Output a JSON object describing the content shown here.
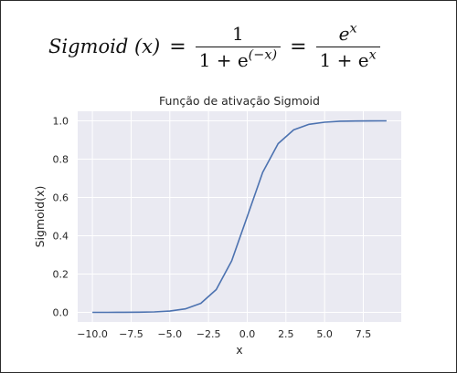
{
  "formula": {
    "lhs_name": "Sigmoid",
    "lhs_arg": "(x)",
    "equals": "=",
    "frac1_num": "1",
    "frac1_den_base": "1 + e",
    "frac1_den_exp": "(−x)",
    "frac2_num_base": "e",
    "frac2_num_exp": "x",
    "frac2_den_base": "1 + e",
    "frac2_den_exp": "x"
  },
  "chart_data": {
    "type": "line",
    "title": "Função de ativação Sigmoid",
    "xlabel": "x",
    "ylabel": "Sigmoid(x)",
    "xlim": [
      -10.95,
      9.95
    ],
    "ylim": [
      -0.05,
      1.05
    ],
    "grid": true,
    "xticks": [
      -10.0,
      -7.5,
      -5.0,
      -2.5,
      0.0,
      2.5,
      5.0,
      7.5
    ],
    "xtick_labels": [
      "−10.0",
      "−7.5",
      "−5.0",
      "−2.5",
      "0.0",
      "2.5",
      "5.0",
      "7.5"
    ],
    "yticks": [
      0.0,
      0.2,
      0.4,
      0.6,
      0.8,
      1.0
    ],
    "ytick_labels": [
      "0.0",
      "0.2",
      "0.4",
      "0.6",
      "0.8",
      "1.0"
    ],
    "series": [
      {
        "name": "Sigmoid",
        "color": "#4c72b0",
        "x": [
          -10,
          -9,
          -8,
          -7,
          -6,
          -5,
          -4,
          -3,
          -2,
          -1,
          0,
          1,
          2,
          3,
          4,
          5,
          6,
          7,
          8,
          9
        ],
        "y": [
          5e-05,
          0.0001,
          0.0003,
          0.0009,
          0.0025,
          0.0067,
          0.018,
          0.047,
          0.119,
          0.269,
          0.5,
          0.731,
          0.881,
          0.953,
          0.982,
          0.993,
          0.998,
          0.999,
          0.9997,
          0.9999
        ]
      }
    ]
  },
  "colors": {
    "plot_bg": "#eaeaf2",
    "grid": "#ffffff",
    "text": "#262626"
  }
}
